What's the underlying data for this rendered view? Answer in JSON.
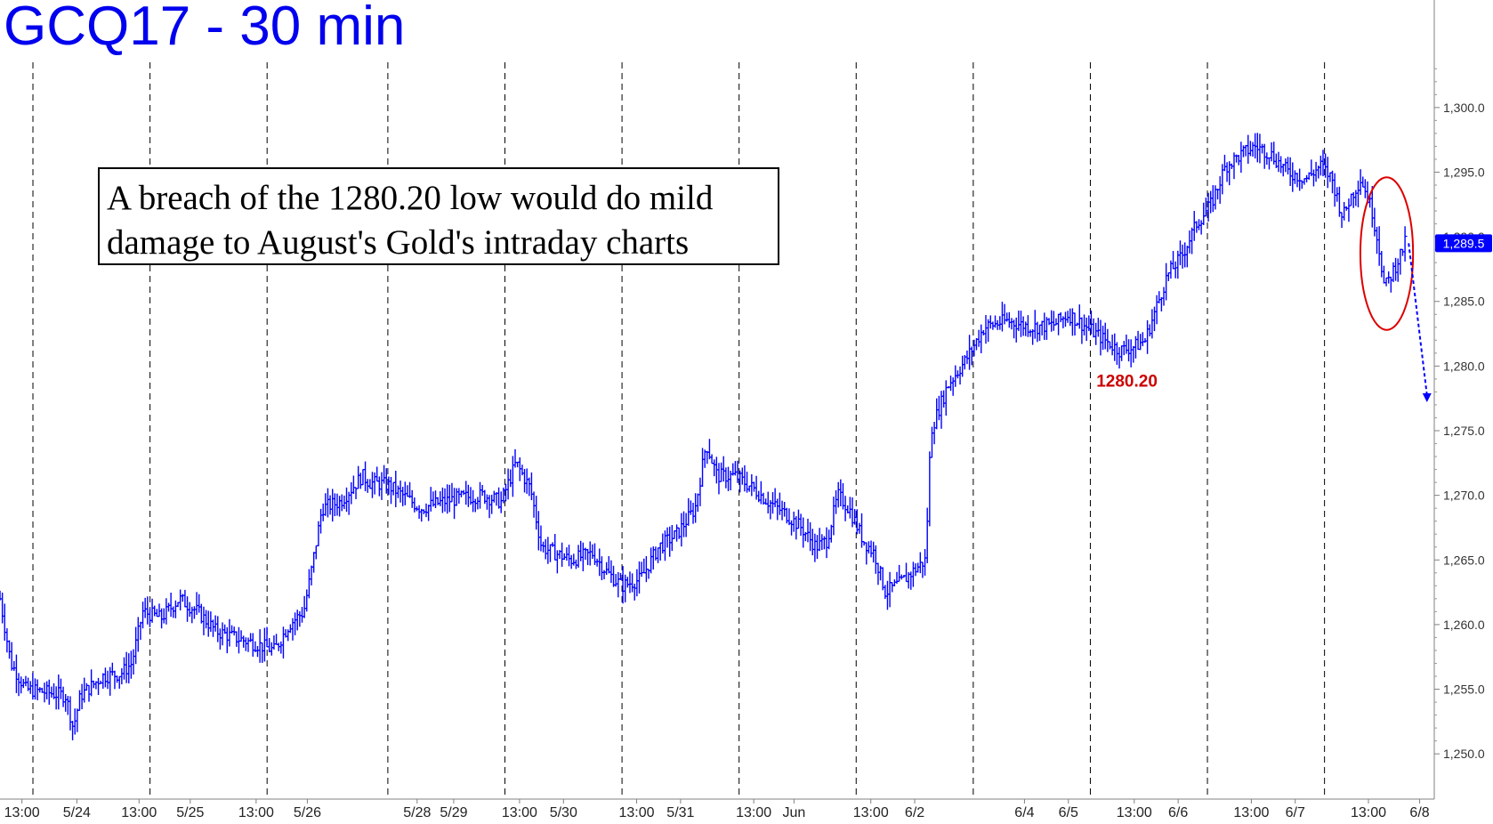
{
  "chart_data": {
    "type": "bar",
    "title": "GCQ17 - 30 min",
    "xlabel": "",
    "ylabel": "",
    "ylim": [
      1246.5,
      1303.5
    ],
    "yticks": [
      1250,
      1255,
      1260,
      1265,
      1270,
      1275,
      1280,
      1285,
      1290,
      1295,
      1300
    ],
    "ytick_labels": [
      "1,250.0",
      "1,255.0",
      "1,260.0",
      "1,265.0",
      "1,270.0",
      "1,275.0",
      "1,280.0",
      "1,285.0",
      "1,290.0",
      "1,295.0",
      "1,300.0"
    ],
    "xticks": [
      {
        "t": 0.3,
        "label": "13:00"
      },
      {
        "t": 1.05,
        "label": "5/24"
      },
      {
        "t": 1.9,
        "label": "13:00"
      },
      {
        "t": 2.6,
        "label": "5/25"
      },
      {
        "t": 3.5,
        "label": "13:00"
      },
      {
        "t": 4.2,
        "label": "5/26"
      },
      {
        "t": 5.7,
        "label": "5/28"
      },
      {
        "t": 6.2,
        "label": "5/29"
      },
      {
        "t": 7.1,
        "label": "13:00"
      },
      {
        "t": 7.7,
        "label": "5/30"
      },
      {
        "t": 8.7,
        "label": "13:00"
      },
      {
        "t": 9.3,
        "label": "5/31"
      },
      {
        "t": 10.3,
        "label": "13:00"
      },
      {
        "t": 10.85,
        "label": "Jun"
      },
      {
        "t": 11.9,
        "label": "13:00"
      },
      {
        "t": 12.5,
        "label": "6/2"
      },
      {
        "t": 14.0,
        "label": "6/4"
      },
      {
        "t": 14.6,
        "label": "6/5"
      },
      {
        "t": 15.5,
        "label": "13:00"
      },
      {
        "t": 16.1,
        "label": "6/6"
      },
      {
        "t": 17.1,
        "label": "13:00"
      },
      {
        "t": 17.7,
        "label": "6/7"
      },
      {
        "t": 18.7,
        "label": "13:00"
      },
      {
        "t": 19.4,
        "label": "6/8"
      }
    ],
    "session_lines_t": [
      0.45,
      2.05,
      3.65,
      5.3,
      6.9,
      8.5,
      10.1,
      11.7,
      13.3,
      14.9,
      16.5,
      18.1
    ],
    "xlim": [
      0,
      19.6
    ],
    "last_price": 1289.5,
    "last_price_label": "1,289.5",
    "key_low": {
      "value": 1280.2,
      "t": 15.4,
      "label": "1280.20"
    },
    "projection": {
      "from": [
        19.25,
        1289.5
      ],
      "to": [
        19.5,
        1277.2
      ]
    },
    "highlight": {
      "t": 18.95,
      "value": 1288.7,
      "rt": 0.36,
      "rv": 5.9
    },
    "series": [
      {
        "color": "#0000ff",
        "anchors": [
          [
            0,
            1262
          ],
          [
            0.15,
            1257
          ],
          [
            0.35,
            1255
          ],
          [
            0.6,
            1254.8
          ],
          [
            0.9,
            1254.5
          ],
          [
            1.0,
            1252
          ],
          [
            1.1,
            1254.5
          ],
          [
            1.4,
            1256
          ],
          [
            1.65,
            1256.2
          ],
          [
            1.8,
            1257
          ],
          [
            1.95,
            1261
          ],
          [
            2.2,
            1260.5
          ],
          [
            2.45,
            1262
          ],
          [
            2.7,
            1261
          ],
          [
            2.95,
            1259.5
          ],
          [
            3.2,
            1259
          ],
          [
            3.5,
            1258.5
          ],
          [
            3.75,
            1258
          ],
          [
            3.95,
            1260
          ],
          [
            4.15,
            1261
          ],
          [
            4.25,
            1264
          ],
          [
            4.4,
            1269
          ],
          [
            4.65,
            1269.5
          ],
          [
            4.95,
            1271.5
          ],
          [
            5.05,
            1271
          ],
          [
            5.3,
            1270.8
          ],
          [
            5.55,
            1269.8
          ],
          [
            5.75,
            1269
          ],
          [
            6.05,
            1269.5
          ],
          [
            6.3,
            1269.8
          ],
          [
            6.6,
            1270
          ],
          [
            6.85,
            1269.5
          ],
          [
            7.05,
            1272.5
          ],
          [
            7.25,
            1270.5
          ],
          [
            7.4,
            1266
          ],
          [
            7.6,
            1265.5
          ],
          [
            7.8,
            1265
          ],
          [
            8.1,
            1265.5
          ],
          [
            8.3,
            1264
          ],
          [
            8.5,
            1263
          ],
          [
            8.75,
            1263.5
          ],
          [
            9.0,
            1266
          ],
          [
            9.25,
            1267
          ],
          [
            9.5,
            1269
          ],
          [
            9.65,
            1274
          ],
          [
            9.8,
            1271.5
          ],
          [
            10.05,
            1271.5
          ],
          [
            10.3,
            1270.5
          ],
          [
            10.5,
            1269.5
          ],
          [
            10.75,
            1268.5
          ],
          [
            10.95,
            1267.5
          ],
          [
            11.15,
            1266
          ],
          [
            11.3,
            1266.5
          ],
          [
            11.45,
            1270
          ],
          [
            11.6,
            1269
          ],
          [
            11.8,
            1266.5
          ],
          [
            11.95,
            1265.5
          ],
          [
            12.1,
            1262.5
          ],
          [
            12.3,
            1263.2
          ],
          [
            12.55,
            1264.5
          ],
          [
            12.65,
            1265
          ],
          [
            12.72,
            1275
          ],
          [
            12.95,
            1278.5
          ],
          [
            13.2,
            1280.5
          ],
          [
            13.45,
            1283
          ],
          [
            13.75,
            1283.5
          ],
          [
            14.1,
            1283
          ],
          [
            14.4,
            1283.2
          ],
          [
            14.6,
            1284
          ],
          [
            14.85,
            1283
          ],
          [
            15.1,
            1282
          ],
          [
            15.3,
            1281.2
          ],
          [
            15.5,
            1281.5
          ],
          [
            15.65,
            1282
          ],
          [
            15.8,
            1284.5
          ],
          [
            15.95,
            1287
          ],
          [
            16.15,
            1288.5
          ],
          [
            16.35,
            1291
          ],
          [
            16.55,
            1292.5
          ],
          [
            16.75,
            1295.5
          ],
          [
            17.0,
            1296.5
          ],
          [
            17.15,
            1297
          ],
          [
            17.35,
            1296.5
          ],
          [
            17.6,
            1295
          ],
          [
            17.85,
            1294.5
          ],
          [
            18.05,
            1295.5
          ],
          [
            18.2,
            1294.5
          ],
          [
            18.35,
            1291.5
          ],
          [
            18.45,
            1293
          ],
          [
            18.6,
            1294.5
          ],
          [
            18.75,
            1292
          ],
          [
            18.85,
            1289
          ],
          [
            18.92,
            1286
          ],
          [
            19.05,
            1287.5
          ],
          [
            19.2,
            1289.5
          ]
        ]
      }
    ]
  }
}
